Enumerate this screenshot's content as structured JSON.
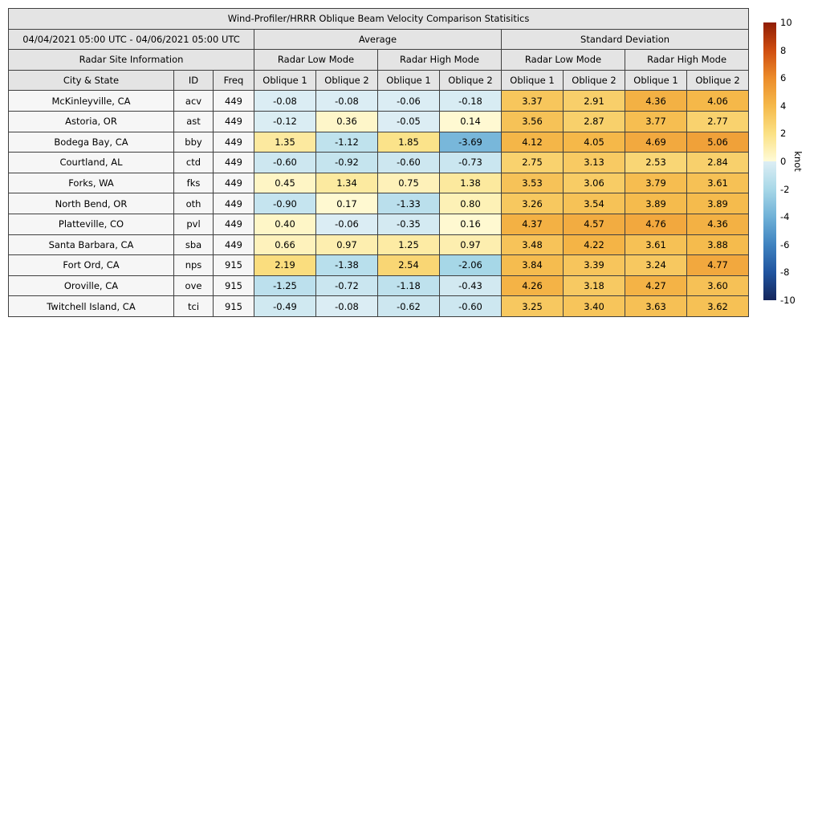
{
  "chart_data": {
    "type": "table",
    "title": "Wind-Profiler/HRRR Oblique Beam Velocity Comparison Statisitics",
    "subtitle_left": "04/04/2021 05:00 UTC - 04/06/2021 05:00 UTC",
    "group_headers": [
      "Average",
      "Standard Deviation"
    ],
    "section_header": "Radar Site Information",
    "mode_headers": [
      "Radar Low Mode",
      "Radar High Mode",
      "Radar Low Mode",
      "Radar High Mode"
    ],
    "column_headers": [
      "City & State",
      "ID",
      "Freq",
      "Oblique 1",
      "Oblique 2",
      "Oblique 1",
      "Oblique 2",
      "Oblique 1",
      "Oblique 2",
      "Oblique 1",
      "Oblique 2"
    ],
    "rows": [
      {
        "city": "McKinleyville, CA",
        "id": "acv",
        "freq": "449",
        "values": [
          -0.08,
          -0.08,
          -0.06,
          -0.18,
          3.37,
          2.91,
          4.36,
          4.06
        ]
      },
      {
        "city": "Astoria, OR",
        "id": "ast",
        "freq": "449",
        "values": [
          -0.12,
          0.36,
          -0.05,
          0.14,
          3.56,
          2.87,
          3.77,
          2.77
        ]
      },
      {
        "city": "Bodega Bay, CA",
        "id": "bby",
        "freq": "449",
        "values": [
          1.35,
          -1.12,
          1.85,
          -3.69,
          4.12,
          4.05,
          4.69,
          5.06
        ]
      },
      {
        "city": "Courtland, AL",
        "id": "ctd",
        "freq": "449",
        "values": [
          -0.6,
          -0.92,
          -0.6,
          -0.73,
          2.75,
          3.13,
          2.53,
          2.84
        ]
      },
      {
        "city": "Forks, WA",
        "id": "fks",
        "freq": "449",
        "values": [
          0.45,
          1.34,
          0.75,
          1.38,
          3.53,
          3.06,
          3.79,
          3.61
        ]
      },
      {
        "city": "North Bend, OR",
        "id": "oth",
        "freq": "449",
        "values": [
          -0.9,
          0.17,
          -1.33,
          0.8,
          3.26,
          3.54,
          3.89,
          3.89
        ]
      },
      {
        "city": "Platteville, CO",
        "id": "pvl",
        "freq": "449",
        "values": [
          0.4,
          -0.06,
          -0.35,
          0.16,
          4.37,
          4.57,
          4.76,
          4.36
        ]
      },
      {
        "city": "Santa Barbara, CA",
        "id": "sba",
        "freq": "449",
        "values": [
          0.66,
          0.97,
          1.25,
          0.97,
          3.48,
          4.22,
          3.61,
          3.88
        ]
      },
      {
        "city": "Fort Ord, CA",
        "id": "nps",
        "freq": "915",
        "values": [
          2.19,
          -1.38,
          2.54,
          -2.06,
          3.84,
          3.39,
          3.24,
          4.77
        ]
      },
      {
        "city": "Oroville, CA",
        "id": "ove",
        "freq": "915",
        "values": [
          -1.25,
          -0.72,
          -1.18,
          -0.43,
          4.26,
          3.18,
          4.27,
          3.6
        ]
      },
      {
        "city": "Twitchell Island, CA",
        "id": "tci",
        "freq": "915",
        "values": [
          -0.49,
          -0.08,
          -0.62,
          -0.6,
          3.25,
          3.4,
          3.63,
          3.62
        ]
      }
    ],
    "colorbar": {
      "label": "knot",
      "vmin": -10,
      "vmax": 10,
      "ticks": [
        10,
        8,
        6,
        4,
        2,
        0,
        -2,
        -4,
        -6,
        -8,
        -10
      ]
    }
  },
  "colors": {
    "header_bg": "#e4e4e4",
    "label_cell_bg": "#f6f6f6",
    "border": "#3f3f3f",
    "warm_anchors": [
      [
        0,
        "#fffbd8"
      ],
      [
        2,
        "#fbe184"
      ],
      [
        4,
        "#f5b94a"
      ],
      [
        6,
        "#ec8c2a"
      ],
      [
        8,
        "#cf4d10"
      ],
      [
        10,
        "#8f1c04"
      ]
    ],
    "cool_anchors": [
      [
        0,
        "#ddeef4"
      ],
      [
        -2,
        "#a8d8e8"
      ],
      [
        -4,
        "#6fb1d7"
      ],
      [
        -6,
        "#3f83c0"
      ],
      [
        -8,
        "#20549f"
      ],
      [
        -10,
        "#14265c"
      ]
    ]
  }
}
